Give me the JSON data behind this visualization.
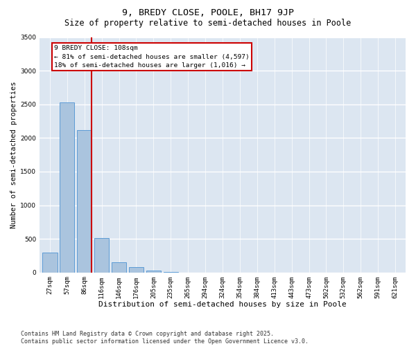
{
  "title": "9, BREDY CLOSE, POOLE, BH17 9JP",
  "subtitle": "Size of property relative to semi-detached houses in Poole",
  "xlabel": "Distribution of semi-detached houses by size in Poole",
  "ylabel": "Number of semi-detached properties",
  "categories": [
    "27sqm",
    "57sqm",
    "86sqm",
    "116sqm",
    "146sqm",
    "176sqm",
    "205sqm",
    "235sqm",
    "265sqm",
    "294sqm",
    "324sqm",
    "354sqm",
    "384sqm",
    "413sqm",
    "443sqm",
    "473sqm",
    "502sqm",
    "532sqm",
    "562sqm",
    "591sqm",
    "621sqm"
  ],
  "values": [
    300,
    2530,
    2120,
    510,
    155,
    75,
    25,
    5,
    0,
    0,
    0,
    0,
    0,
    0,
    0,
    0,
    0,
    0,
    0,
    0,
    0
  ],
  "bar_color": "#aac4de",
  "bar_edge_color": "#5b9bd5",
  "bg_color": "#dce6f1",
  "grid_color": "#ffffff",
  "vline_color": "#cc0000",
  "annotation_text": "9 BREDY CLOSE: 108sqm\n← 81% of semi-detached houses are smaller (4,597)\n18% of semi-detached houses are larger (1,016) →",
  "annotation_box_color": "#ffffff",
  "annotation_box_edge": "#cc0000",
  "ylim": [
    0,
    3500
  ],
  "yticks": [
    0,
    500,
    1000,
    1500,
    2000,
    2500,
    3000,
    3500
  ],
  "footer": "Contains HM Land Registry data © Crown copyright and database right 2025.\nContains public sector information licensed under the Open Government Licence v3.0.",
  "title_fontsize": 9.5,
  "subtitle_fontsize": 8.5,
  "xlabel_fontsize": 8,
  "ylabel_fontsize": 7.5,
  "tick_fontsize": 6.5,
  "annotation_fontsize": 6.8,
  "footer_fontsize": 6
}
